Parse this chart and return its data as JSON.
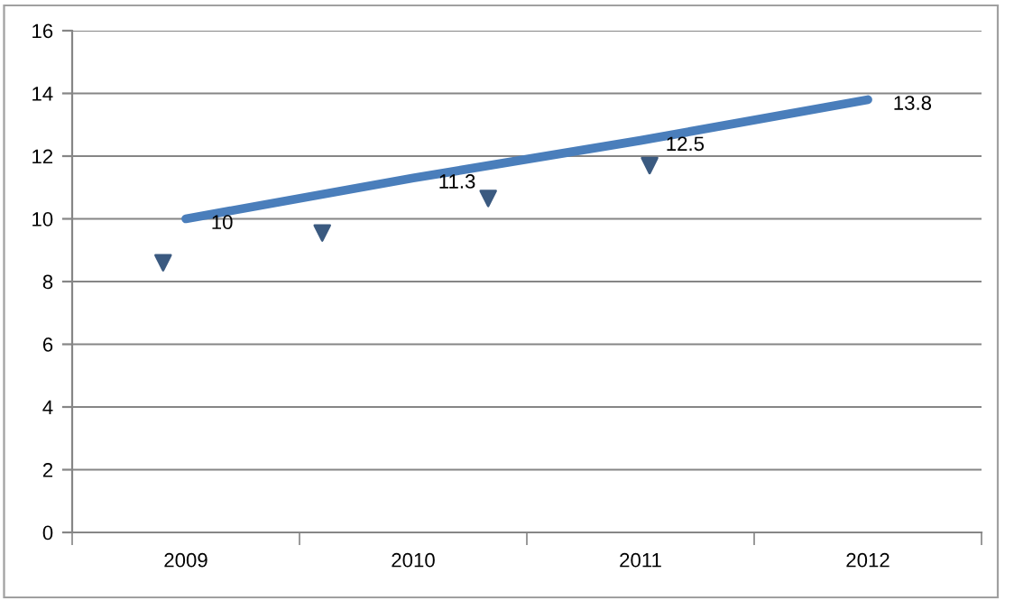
{
  "chart_data": {
    "type": "line",
    "xlim": [
      2008.5,
      2012.5
    ],
    "xticks": [
      {
        "value": 2008.5,
        "label": null
      },
      2009,
      {
        "value": 2009.5,
        "label": null
      },
      2010,
      {
        "value": 2010.5,
        "label": null
      },
      2011,
      {
        "value": 2011.5,
        "label": null
      },
      2012,
      {
        "value": 2012.5,
        "label": null
      }
    ],
    "ylim": [
      0,
      16
    ],
    "yticks": [
      0,
      2,
      4,
      6,
      8,
      10,
      12,
      14,
      16
    ],
    "grid": "y",
    "series": [
      {
        "type": "scatter",
        "color": "#3b5a80",
        "marker": "triangle",
        "x": [
          2008.9,
          2009.6,
          2010.33,
          2011.04
        ],
        "values": [
          8.6,
          9.55,
          10.65,
          11.7
        ]
      },
      {
        "color": "#4a7ebb",
        "x": [
          2009,
          2010,
          2011,
          2012
        ],
        "values": [
          10,
          11.3,
          12.5,
          13.8
        ],
        "data_labels": true
      }
    ]
  }
}
